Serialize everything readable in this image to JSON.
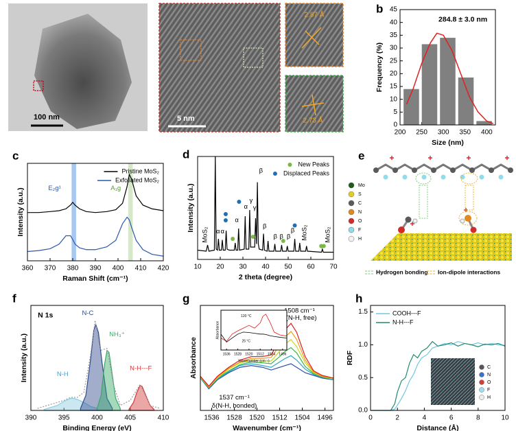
{
  "panel_labels": [
    "a",
    "b",
    "c",
    "d",
    "e",
    "f",
    "g",
    "h"
  ],
  "panel_a": {
    "scale_bars": [
      "100 nm",
      "5 nm"
    ],
    "d_spacings": [
      "2.87 Å",
      "2.73 Å"
    ]
  },
  "panel_e": {
    "atoms": [
      {
        "label": "Mo",
        "color": "#1e5a1e"
      },
      {
        "label": "S",
        "color": "#e6cf1a"
      },
      {
        "label": "C",
        "color": "#5a5a5a"
      },
      {
        "label": "N",
        "color": "#e08a1e"
      },
      {
        "label": "O",
        "color": "#d22b2b"
      },
      {
        "label": "F",
        "color": "#8fdcea"
      },
      {
        "label": "H",
        "color": "#f2f2f2"
      }
    ],
    "interactions": [
      {
        "label": "Hydrogen bonding",
        "color": "#7fc97f"
      },
      {
        "label": "Ion-dipole interactions",
        "color": "#f0b429"
      }
    ]
  },
  "chart_data": [
    {
      "type": "histogram",
      "xlabel": "Size (nm)",
      "ylabel": "Frequency (%)",
      "bins": [
        205,
        247,
        289,
        331,
        373,
        415
      ],
      "values": [
        14,
        31.5,
        34,
        18.5,
        1.5
      ],
      "color": "#808080",
      "fit": {
        "x": [
          215,
          230,
          250,
          270,
          285,
          300,
          320,
          340,
          360,
          380,
          400,
          415
        ],
        "values": [
          8,
          14,
          24,
          32,
          35.8,
          35,
          29,
          20,
          11,
          5,
          1.5,
          0.5
        ],
        "color": "#e02020"
      },
      "xlim": [
        200,
        420
      ],
      "xticks": [
        200,
        250,
        300,
        350,
        400
      ],
      "ylim": [
        0,
        45
      ],
      "yticks": [
        0,
        5,
        10,
        15,
        20,
        25,
        30,
        35,
        40,
        45
      ],
      "annotations": [
        {
          "text": "284.8 ± 3.0 nm",
          "x": 345,
          "y": 41,
          "bold": true
        }
      ]
    },
    {
      "type": "line",
      "xlabel": "Raman Shift (cm⁻¹)",
      "ylabel": "Intensity (a.u.)",
      "x": [
        360,
        365,
        370,
        374,
        377,
        379,
        380,
        381,
        383,
        386,
        390,
        395,
        399,
        402,
        404,
        405,
        406,
        408,
        411,
        415,
        420
      ],
      "series": [
        {
          "name": "Pristine MoS₂",
          "color": "#000000",
          "values": [
            0.52,
            0.52,
            0.53,
            0.54,
            0.56,
            0.6,
            0.63,
            0.6,
            0.56,
            0.53,
            0.52,
            0.53,
            0.55,
            0.62,
            0.8,
            0.93,
            0.88,
            0.7,
            0.6,
            0.56,
            0.54
          ]
        },
        {
          "name": "Exfoliated MoS₂",
          "color": "#2a56b0",
          "values": [
            0.1,
            0.11,
            0.13,
            0.18,
            0.27,
            0.27,
            0.23,
            0.18,
            0.14,
            0.12,
            0.12,
            0.15,
            0.22,
            0.4,
            0.47,
            0.44,
            0.36,
            0.22,
            0.12,
            0.07,
            0.05
          ]
        }
      ],
      "bands": [
        {
          "from": 379.5,
          "to": 381.5,
          "color": "#a9c8ef"
        },
        {
          "from": 404.5,
          "to": 406.5,
          "color": "#d5e8c8"
        }
      ],
      "xlim": [
        360,
        420
      ],
      "xticks": [
        360,
        370,
        380,
        390,
        400,
        410,
        420
      ],
      "ylim": [
        0,
        1.05
      ],
      "legend": "upper right",
      "annotations": [
        {
          "text": "E₂g¹",
          "x": 372,
          "y": 0.78,
          "color": "#2a56b0"
        },
        {
          "text": "A₁g",
          "x": 399,
          "y": 0.78,
          "color": "#5a9a3a"
        }
      ]
    },
    {
      "type": "line",
      "xlabel": "2 theta (degree)",
      "ylabel": "Intensity (a.u.)",
      "x": [
        10,
        13.8,
        14.4,
        15,
        17.4,
        17.8,
        18.2,
        18.8,
        19.2,
        19.6,
        20.5,
        20.9,
        21.3,
        22.2,
        22.6,
        23,
        24,
        26.2,
        26.6,
        27,
        27.7,
        28.1,
        28.5,
        30.6,
        31,
        31.4,
        32.6,
        33,
        33.4,
        35.2,
        35.6,
        36,
        36.4,
        36.8,
        37.2,
        38.7,
        39.1,
        39.5,
        40.7,
        41.1,
        41.5,
        43.7,
        44.1,
        44.5,
        46.7,
        47.1,
        47.5,
        49.2,
        49.6,
        50,
        52.5,
        52.9,
        53.3,
        54.7,
        55.1,
        55.5,
        57.7,
        58.1,
        58.5,
        64.7,
        65.1,
        65.5,
        70
      ],
      "series": [
        {
          "color": "#000000",
          "values": [
            0.09,
            0.08,
            0.14,
            0.08,
            0.09,
            1.0,
            0.1,
            0.09,
            0.2,
            0.09,
            0.09,
            0.19,
            0.09,
            0.09,
            0.28,
            0.1,
            0.09,
            0.09,
            0.16,
            0.09,
            0.09,
            0.3,
            0.09,
            0.1,
            0.42,
            0.1,
            0.1,
            0.48,
            0.12,
            0.12,
            0.4,
            0.15,
            0.75,
            0.15,
            0.1,
            0.09,
            0.25,
            0.09,
            0.08,
            0.18,
            0.08,
            0.08,
            0.15,
            0.08,
            0.08,
            0.14,
            0.08,
            0.08,
            0.13,
            0.08,
            0.08,
            0.2,
            0.08,
            0.08,
            0.16,
            0.08,
            0.08,
            0.13,
            0.08,
            0.07,
            0.1,
            0.07,
            0.07
          ]
        },
        {
          "name": "New Peaks",
          "color": "#7ab648",
          "mode": "markers",
          "x": [
            25.5,
            34.5,
            47.8,
            64.6,
            65.7
          ],
          "values": [
            0.2,
            0.22,
            0.18,
            0.13,
            0.13
          ]
        },
        {
          "name": "Displaced Peaks",
          "color": "#1f6fb5",
          "mode": "markers",
          "x": [
            22.4,
            22.4,
            28.3,
            52.9
          ],
          "values": [
            0.44,
            0.38,
            0.56,
            0.33
          ]
        }
      ],
      "xlim": [
        10,
        70
      ],
      "xticks": [
        10,
        20,
        30,
        40,
        50,
        60,
        70
      ],
      "ylim": [
        0,
        1
      ],
      "legend": "upper right",
      "annotations": [
        {
          "text": "MoS₂",
          "x": 13.4,
          "y": 0.24,
          "vertical": true
        },
        {
          "text": "α",
          "x": 19,
          "y": 0.27
        },
        {
          "text": "α",
          "x": 21,
          "y": 0.27
        },
        {
          "text": "α",
          "x": 27.3,
          "y": 0.38
        },
        {
          "text": "α",
          "x": 31.3,
          "y": 0.51
        },
        {
          "text": "γ",
          "x": 33.6,
          "y": 0.57
        },
        {
          "text": "γ",
          "x": 35.2,
          "y": 0.5
        },
        {
          "text": "β",
          "x": 38,
          "y": 0.86
        },
        {
          "text": "β",
          "x": 39.6,
          "y": 0.32
        },
        {
          "text": "β",
          "x": 44.3,
          "y": 0.22
        },
        {
          "text": "β",
          "x": 47,
          "y": 0.22
        },
        {
          "text": "β",
          "x": 50.2,
          "y": 0.22
        },
        {
          "text": "β",
          "x": 52,
          "y": 0.28
        },
        {
          "text": "MoS₂",
          "x": 57.3,
          "y": 0.26,
          "vertical": true
        },
        {
          "text": "MoS₂",
          "x": 67.5,
          "y": 0.24,
          "vertical": true
        }
      ]
    },
    {
      "type": "line",
      "xlabel": "Binding Energy (eV)",
      "ylabel": "Intensity (a.u.)",
      "series": [
        {
          "color": "#8ccbe0",
          "fill": true,
          "x": [
            392,
            394,
            395,
            396,
            396.5,
            397,
            398,
            399,
            400
          ],
          "values": [
            0.01,
            0.05,
            0.09,
            0.12,
            0.12,
            0.11,
            0.08,
            0.04,
            0.02
          ]
        },
        {
          "color": "#2e4a8c",
          "fill": true,
          "x": [
            397.5,
            398.3,
            399,
            399.5,
            399.8,
            400.2,
            400.8,
            401.5,
            402.3
          ],
          "values": [
            0.02,
            0.15,
            0.5,
            0.8,
            0.86,
            0.78,
            0.45,
            0.12,
            0.02
          ]
        },
        {
          "color": "#3aa86a",
          "fill": true,
          "x": [
            400,
            400.6,
            401.1,
            401.5,
            401.8,
            402.2,
            402.8,
            403.5
          ],
          "values": [
            0.02,
            0.15,
            0.45,
            0.6,
            0.58,
            0.4,
            0.12,
            0.02
          ]
        },
        {
          "color": "#d23a3a",
          "fill": true,
          "x": [
            404.8,
            405.5,
            406,
            406.5,
            406.8,
            407.3,
            408,
            408.6
          ],
          "values": [
            0.01,
            0.08,
            0.18,
            0.25,
            0.24,
            0.16,
            0.05,
            0.01
          ]
        },
        {
          "color": "#9a9a9a",
          "dashed": true,
          "x": [
            391,
            393,
            395,
            396,
            397,
            398,
            399,
            399.7,
            400.5,
            401.5,
            402.5,
            403.5,
            405,
            406.5,
            408,
            409.5
          ],
          "values": [
            0.02,
            0.06,
            0.1,
            0.13,
            0.13,
            0.18,
            0.55,
            0.9,
            0.6,
            0.62,
            0.25,
            0.05,
            0.1,
            0.26,
            0.05,
            0.02
          ]
        }
      ],
      "xlim": [
        390,
        410
      ],
      "xticks": [
        390,
        395,
        400,
        405,
        410
      ],
      "ylim": [
        0,
        1.05
      ],
      "annotations": [
        {
          "text": "N 1s",
          "x": 392.2,
          "y": 0.95,
          "bold": true
        },
        {
          "text": "N-H",
          "x": 394.8,
          "y": 0.36,
          "color": "#4aa3c8"
        },
        {
          "text": "N-C",
          "x": 398.6,
          "y": 0.97,
          "color": "#2e4a8c"
        },
        {
          "text": "NH₃⁺",
          "x": 403,
          "y": 0.76,
          "color": "#3aa86a"
        },
        {
          "text": "N-H---F",
          "x": 406.6,
          "y": 0.42,
          "color": "#d23a3a"
        }
      ]
    },
    {
      "type": "line",
      "xlabel": "Wavenumber (cm⁻¹)",
      "ylabel": "Absorbance",
      "x": [
        1540,
        1537,
        1534,
        1530,
        1526,
        1522,
        1518,
        1515,
        1512,
        1510,
        1508,
        1506,
        1503,
        1500,
        1497,
        1493
      ],
      "series": [
        {
          "color": "#2b4fa8",
          "values": [
            0.24,
            0.12,
            0.22,
            0.3,
            0.36,
            0.38,
            0.36,
            0.33,
            0.36,
            0.38,
            0.4,
            0.36,
            0.3,
            0.27,
            0.24,
            0.22
          ]
        },
        {
          "color": "#2aa6c9",
          "values": [
            0.24,
            0.13,
            0.23,
            0.31,
            0.38,
            0.4,
            0.38,
            0.36,
            0.42,
            0.46,
            0.49,
            0.44,
            0.34,
            0.28,
            0.25,
            0.22
          ]
        },
        {
          "color": "#3bb54a",
          "values": [
            0.25,
            0.13,
            0.24,
            0.32,
            0.39,
            0.42,
            0.41,
            0.4,
            0.48,
            0.54,
            0.58,
            0.52,
            0.37,
            0.29,
            0.25,
            0.23
          ]
        },
        {
          "color": "#c8d620",
          "values": [
            0.25,
            0.14,
            0.24,
            0.34,
            0.41,
            0.44,
            0.43,
            0.43,
            0.54,
            0.62,
            0.67,
            0.59,
            0.41,
            0.3,
            0.26,
            0.23
          ]
        },
        {
          "color": "#f29b1d",
          "values": [
            0.26,
            0.14,
            0.25,
            0.35,
            0.42,
            0.46,
            0.46,
            0.47,
            0.6,
            0.7,
            0.76,
            0.67,
            0.44,
            0.31,
            0.26,
            0.24
          ]
        },
        {
          "color": "#e31a1c",
          "values": [
            0.26,
            0.15,
            0.26,
            0.36,
            0.44,
            0.48,
            0.48,
            0.5,
            0.66,
            0.78,
            0.85,
            0.75,
            0.48,
            0.32,
            0.27,
            0.24
          ]
        }
      ],
      "xlim": [
        1540,
        1493
      ],
      "xticks": [
        1536,
        1528,
        1520,
        1512,
        1504,
        1496
      ],
      "ylim": [
        -0.12,
        1.05
      ],
      "annotations": [
        {
          "text": "1508 cm⁻¹",
          "x": 1505,
          "y": 0.99
        },
        {
          "text": "δ(N-H,  free)",
          "x": 1505,
          "y": 0.91
        },
        {
          "text": "1537 cm⁻¹",
          "x": 1528,
          "y": 0.02
        },
        {
          "text": "δ(N-H,  bonded)",
          "x": 1528,
          "y": -0.07
        }
      ]
    },
    {
      "type": "line",
      "inset": true,
      "xlabel": "Wavenumber (cm⁻¹)",
      "ylabel": "Absorbance",
      "x": [
        1540,
        1536,
        1532,
        1528,
        1524,
        1520,
        1516,
        1512,
        1510,
        1508,
        1505,
        1502,
        1498,
        1493
      ],
      "series": [
        {
          "color": "#e31a1c",
          "values": [
            0.3,
            0.22,
            0.4,
            0.48,
            0.55,
            0.62,
            0.55,
            0.68,
            0.85,
            0.9,
            0.7,
            0.45,
            0.38,
            0.35
          ]
        },
        {
          "color": "#000000",
          "values": [
            0.4,
            0.2,
            0.3,
            0.4,
            0.45,
            0.44,
            0.42,
            0.4,
            0.4,
            0.39,
            0.36,
            0.34,
            0.32,
            0.3
          ]
        }
      ],
      "xlim": [
        1540,
        1493
      ],
      "xticks": [
        1536,
        1528,
        1520,
        1512,
        1504,
        1496
      ],
      "ylim": [
        0,
        1
      ],
      "annotations": [
        {
          "text": "120 °C",
          "x": 1522,
          "y": 0.85
        },
        {
          "text": "25 °C",
          "x": 1522,
          "y": 0.22
        }
      ]
    },
    {
      "type": "line",
      "xlabel": "Distance (Å)",
      "ylabel": "RDF",
      "x": [
        0,
        1.5,
        1.8,
        2.0,
        2.3,
        2.6,
        2.9,
        3.2,
        3.5,
        3.8,
        4.2,
        4.6,
        5,
        5.5,
        6,
        6.5,
        7,
        7.5,
        8,
        8.5,
        9,
        9.5,
        10
      ],
      "series": [
        {
          "name": "COOH---F",
          "color": "#6ec6e8",
          "values": [
            0,
            0,
            0.02,
            0.08,
            0.18,
            0.3,
            0.45,
            0.55,
            0.7,
            0.8,
            0.85,
            0.95,
            0.98,
            1.02,
            1.0,
            1.05,
            1.02,
            1.0,
            1.03,
            1.0,
            1.02,
            1.0,
            0.99
          ]
        },
        {
          "name": "N-H---F",
          "color": "#1f8a70",
          "values": [
            0,
            0,
            0.1,
            0.28,
            0.45,
            0.5,
            0.72,
            0.85,
            0.8,
            0.9,
            0.95,
            1.05,
            0.98,
            1.0,
            1.03,
            0.98,
            1.02,
            1.0,
            0.97,
            1.01,
            1.0,
            1.02,
            0.98
          ]
        }
      ],
      "xlim": [
        0,
        10
      ],
      "xticks": [
        0,
        2,
        4,
        6,
        8,
        10
      ],
      "ylim": [
        0,
        1.6
      ],
      "yticks": [
        {
          "value": 0,
          "label": "0.0"
        },
        {
          "value": 0.5,
          "label": "0.5"
        },
        {
          "value": 1,
          "label": "1.0"
        },
        {
          "value": 1.5,
          "label": "1.5"
        }
      ],
      "legend": "upper left",
      "inset_atoms": [
        {
          "label": "C",
          "color": "#555555"
        },
        {
          "label": "N",
          "color": "#3a6fd8"
        },
        {
          "label": "O",
          "color": "#d83a3a"
        },
        {
          "label": "F",
          "color": "#9fe0f0"
        },
        {
          "label": "H",
          "color": "#eeeeee"
        }
      ]
    }
  ]
}
